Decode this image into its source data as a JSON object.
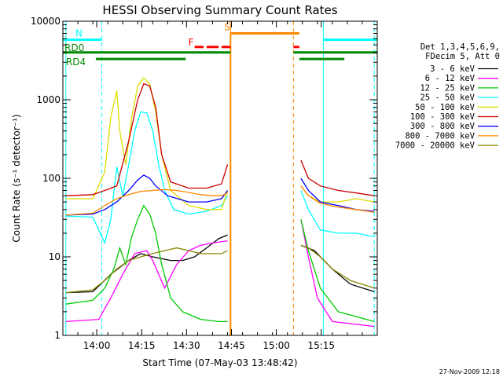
{
  "chart_data": {
    "type": "line",
    "title": "HESSI Observing Summary Count Rates",
    "xlabel": "Start Time (07-May-03 13:48:42)",
    "ylabel": "Count Rate (s⁻¹ detector⁻¹)",
    "yscale": "log",
    "ylim": [
      1,
      10000
    ],
    "xlim_minutes_after_13_48_42": [
      0,
      105
    ],
    "x_ticks": [
      "14:00",
      "14:15",
      "14:30",
      "14:45",
      "15:00",
      "15:15"
    ],
    "x_tick_minutes": [
      11.3,
      26.3,
      41.3,
      56.3,
      71.3,
      86.3
    ],
    "y_ticks": [
      "1",
      "10",
      "100",
      "1000",
      "10000"
    ],
    "y_tick_values": [
      1,
      10,
      100,
      1000,
      10000
    ],
    "legend_header": [
      "Det 1,3,4,5,6,9,",
      "FDecim 5, Att 0"
    ],
    "legend_position": "right",
    "timestamp": "27-Nov-2009 12:18",
    "flag_labels": {
      "night": "N",
      "saa": "S",
      "flare": "F",
      "rd0": "RD0",
      "rd4": "RD4"
    },
    "gaps": [
      {
        "start": 56.0,
        "end": 79.0
      }
    ],
    "series": [
      {
        "name": "3 - 6 keV",
        "color": "#000000",
        "points": [
          [
            1,
            3.5
          ],
          [
            10,
            3.6
          ],
          [
            16,
            6
          ],
          [
            22,
            9
          ],
          [
            26,
            11
          ],
          [
            30,
            10
          ],
          [
            36,
            9
          ],
          [
            40,
            9
          ],
          [
            44,
            10
          ],
          [
            48,
            13
          ],
          [
            52,
            17
          ],
          [
            55,
            19
          ],
          [
            79.5,
            14
          ],
          [
            84,
            12
          ],
          [
            90,
            7
          ],
          [
            96,
            4.5
          ],
          [
            104,
            3.6
          ]
        ]
      },
      {
        "name": "6 - 12 keV",
        "color": "#ff00ff",
        "points": [
          [
            1,
            1.5
          ],
          [
            12,
            1.6
          ],
          [
            16,
            3
          ],
          [
            20,
            6
          ],
          [
            24,
            11
          ],
          [
            28,
            12
          ],
          [
            30,
            9
          ],
          [
            34,
            4
          ],
          [
            38,
            8
          ],
          [
            42,
            12
          ],
          [
            46,
            14
          ],
          [
            50,
            15
          ],
          [
            55,
            16
          ],
          [
            79.5,
            30
          ],
          [
            82,
            10
          ],
          [
            85,
            3
          ],
          [
            90,
            1.5
          ],
          [
            104,
            1.3
          ]
        ]
      },
      {
        "name": "12 - 25 keV",
        "color": "#00cc00",
        "points": [
          [
            1,
            2.5
          ],
          [
            10,
            2.8
          ],
          [
            14,
            4
          ],
          [
            17,
            7
          ],
          [
            19,
            13
          ],
          [
            21,
            8
          ],
          [
            23,
            18
          ],
          [
            25,
            30
          ],
          [
            27,
            45
          ],
          [
            29,
            35
          ],
          [
            31,
            20
          ],
          [
            33,
            8
          ],
          [
            36,
            3
          ],
          [
            40,
            2
          ],
          [
            46,
            1.6
          ],
          [
            52,
            1.5
          ],
          [
            55,
            1.5
          ],
          [
            79.5,
            30
          ],
          [
            82,
            12
          ],
          [
            86,
            4
          ],
          [
            92,
            2
          ],
          [
            104,
            1.5
          ]
        ]
      },
      {
        "name": "25 - 50 keV",
        "color": "#00ffff",
        "points": [
          [
            1,
            33
          ],
          [
            10,
            32
          ],
          [
            14,
            15
          ],
          [
            16,
            30
          ],
          [
            18,
            140
          ],
          [
            20,
            60
          ],
          [
            22,
            150
          ],
          [
            24,
            400
          ],
          [
            26,
            700
          ],
          [
            28,
            680
          ],
          [
            30,
            400
          ],
          [
            32,
            150
          ],
          [
            34,
            70
          ],
          [
            37,
            40
          ],
          [
            42,
            35
          ],
          [
            48,
            38
          ],
          [
            53,
            45
          ],
          [
            55,
            60
          ],
          [
            79.5,
            70
          ],
          [
            82,
            40
          ],
          [
            86,
            22
          ],
          [
            92,
            20
          ],
          [
            98,
            20
          ],
          [
            104,
            18
          ]
        ]
      },
      {
        "name": "50 - 100 keV",
        "color": "#dddd00",
        "points": [
          [
            1,
            55
          ],
          [
            10,
            55
          ],
          [
            14,
            120
          ],
          [
            16,
            600
          ],
          [
            18,
            1300
          ],
          [
            19,
            400
          ],
          [
            21,
            150
          ],
          [
            23,
            600
          ],
          [
            25,
            1500
          ],
          [
            27,
            1900
          ],
          [
            29,
            1600
          ],
          [
            31,
            700
          ],
          [
            33,
            200
          ],
          [
            36,
            70
          ],
          [
            42,
            45
          ],
          [
            48,
            40
          ],
          [
            53,
            40
          ],
          [
            55,
            70
          ],
          [
            79.5,
            80
          ],
          [
            82,
            60
          ],
          [
            86,
            50
          ],
          [
            92,
            50
          ],
          [
            98,
            55
          ],
          [
            104,
            50
          ]
        ]
      },
      {
        "name": "100 - 300 keV",
        "color": "#cc0000",
        "points": [
          [
            1,
            60
          ],
          [
            10,
            62
          ],
          [
            14,
            70
          ],
          [
            18,
            80
          ],
          [
            22,
            300
          ],
          [
            25,
            1000
          ],
          [
            27,
            1600
          ],
          [
            29,
            1500
          ],
          [
            31,
            800
          ],
          [
            33,
            200
          ],
          [
            36,
            90
          ],
          [
            42,
            75
          ],
          [
            48,
            75
          ],
          [
            53,
            85
          ],
          [
            55,
            150
          ],
          [
            79.5,
            170
          ],
          [
            82,
            100
          ],
          [
            86,
            80
          ],
          [
            92,
            70
          ],
          [
            98,
            65
          ],
          [
            104,
            60
          ]
        ]
      },
      {
        "name": "300 - 800 keV",
        "color": "#0000ff",
        "points": [
          [
            1,
            34
          ],
          [
            10,
            35
          ],
          [
            14,
            40
          ],
          [
            18,
            50
          ],
          [
            22,
            70
          ],
          [
            25,
            95
          ],
          [
            27,
            110
          ],
          [
            29,
            100
          ],
          [
            31,
            80
          ],
          [
            35,
            60
          ],
          [
            42,
            50
          ],
          [
            48,
            50
          ],
          [
            53,
            55
          ],
          [
            55,
            70
          ],
          [
            79.5,
            100
          ],
          [
            82,
            70
          ],
          [
            86,
            50
          ],
          [
            92,
            45
          ],
          [
            98,
            40
          ],
          [
            104,
            38
          ]
        ]
      },
      {
        "name": "800 - 7000 keV",
        "color": "#ff8800",
        "points": [
          [
            1,
            34
          ],
          [
            10,
            36
          ],
          [
            14,
            45
          ],
          [
            18,
            55
          ],
          [
            22,
            62
          ],
          [
            26,
            68
          ],
          [
            30,
            70
          ],
          [
            34,
            72
          ],
          [
            38,
            70
          ],
          [
            42,
            66
          ],
          [
            46,
            62
          ],
          [
            50,
            60
          ],
          [
            53,
            60
          ],
          [
            55,
            65
          ],
          [
            79.5,
            80
          ],
          [
            82,
            60
          ],
          [
            86,
            48
          ],
          [
            92,
            43
          ],
          [
            98,
            40
          ],
          [
            104,
            37
          ]
        ]
      },
      {
        "name": "7000 - 20000 keV",
        "color": "#888800",
        "points": [
          [
            1,
            3.5
          ],
          [
            10,
            3.8
          ],
          [
            14,
            5
          ],
          [
            18,
            7
          ],
          [
            22,
            9
          ],
          [
            26,
            10
          ],
          [
            30,
            11
          ],
          [
            34,
            12
          ],
          [
            38,
            13
          ],
          [
            42,
            12
          ],
          [
            46,
            11
          ],
          [
            50,
            11
          ],
          [
            53,
            11
          ],
          [
            55,
            12
          ],
          [
            79.5,
            14
          ],
          [
            82,
            13
          ],
          [
            86,
            10
          ],
          [
            90,
            7
          ],
          [
            96,
            5
          ],
          [
            104,
            4
          ]
        ]
      }
    ],
    "flag_bars": [
      {
        "key": "night",
        "color": "#00ffff",
        "level": 5800,
        "segments": [
          [
            0,
            13
          ],
          [
            87,
            105
          ]
        ]
      },
      {
        "key": "saa",
        "color": "#ff8800",
        "level": 7000,
        "segments": [
          [
            56,
            79
          ]
        ]
      },
      {
        "key": "flare",
        "color": "#ff0000",
        "level": 4700,
        "segments": [
          [
            44,
            47
          ],
          [
            48,
            52
          ],
          [
            53,
            56
          ],
          [
            77,
            79
          ]
        ]
      },
      {
        "key": "rd0",
        "color": "#008800",
        "level": 4000,
        "segments": [
          [
            0,
            15
          ],
          [
            15,
            56
          ],
          [
            77,
            87
          ],
          [
            87,
            105
          ]
        ]
      },
      {
        "key": "rd4",
        "color": "#008800",
        "level": 3300,
        "segments": [
          [
            11,
            41
          ],
          [
            79,
            94
          ]
        ]
      }
    ],
    "vlines": [
      {
        "color": "#00ffff",
        "dashed": false,
        "at": 1
      },
      {
        "color": "#00ffff",
        "dashed": true,
        "at": 13
      },
      {
        "color": "#ff8800",
        "dashed": false,
        "at": 56
      },
      {
        "color": "#ff8800",
        "dashed": true,
        "at": 77
      },
      {
        "color": "#00ffff",
        "dashed": false,
        "at": 87
      },
      {
        "color": "#00ffff",
        "dashed": true,
        "at": 104
      }
    ]
  }
}
